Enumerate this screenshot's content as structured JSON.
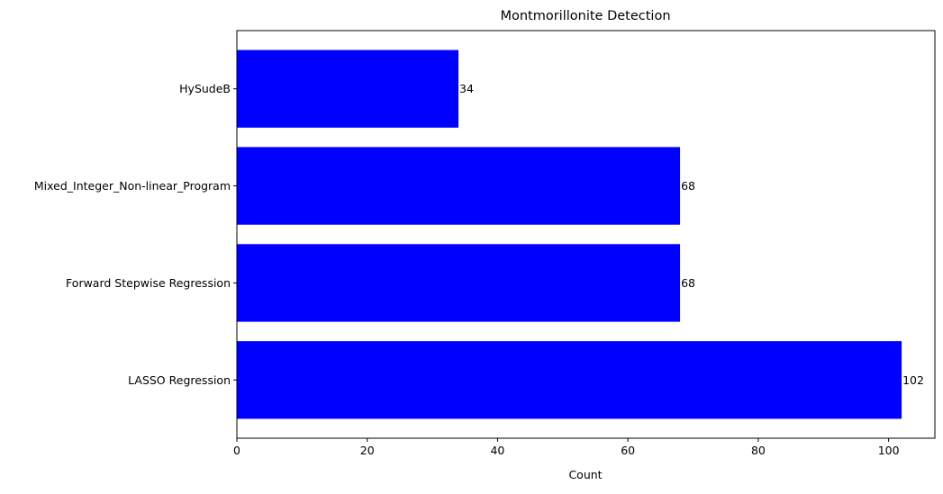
{
  "chart_data": {
    "type": "bar",
    "orientation": "horizontal",
    "title": "Montmorillonite Detection",
    "xlabel": "Count",
    "ylabel": "",
    "categories": [
      "LASSO Regression",
      "Forward Stepwise Regression",
      "Mixed_Integer_Non-linear_Program",
      "HySudeB"
    ],
    "values": [
      102,
      68,
      68,
      34
    ],
    "data_labels": [
      "102",
      "68",
      "68",
      "34"
    ],
    "xlim": [
      0,
      107.1
    ],
    "xticks": [
      0,
      20,
      40,
      60,
      80,
      100
    ],
    "xtick_labels": [
      "0",
      "20",
      "40",
      "60",
      "80",
      "100"
    ],
    "bar_color": "#0000ff",
    "grid": false,
    "legend": "none"
  }
}
